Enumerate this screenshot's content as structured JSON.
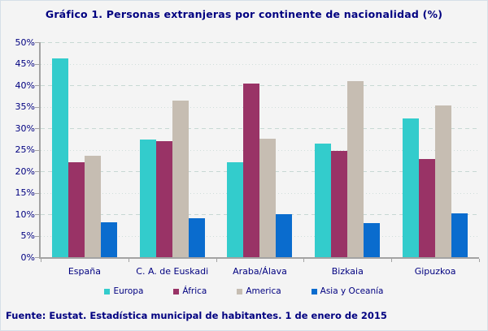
{
  "title": "Gráfico 1. Personas extranjeras por continente de nacionalidad (%)",
  "footer": "Fuente: Eustat. Estadística municipal de habitantes. 1 de enero de 2015",
  "colors": {
    "background": "#f4f4f4",
    "text": "#000080",
    "axis": "#a3a3a3",
    "gridline": "#c7d8d4",
    "border": "#d6dfe8"
  },
  "chart_data": {
    "type": "bar",
    "title": "Gráfico 1. Personas extranjeras por continente de nacionalidad (%)",
    "categories": [
      "España",
      "C. A. de Euskadi",
      "Araba/Álava",
      "Bizkaia",
      "Gipuzkoa"
    ],
    "series": [
      {
        "name": "Europa",
        "color": "#33cccc",
        "values": [
          46.3,
          27.4,
          22.1,
          26.4,
          32.2
        ]
      },
      {
        "name": "África",
        "color": "#993366",
        "values": [
          22.0,
          27.0,
          40.4,
          24.7,
          22.9
        ]
      },
      {
        "name": "America",
        "color": "#c6bdb2",
        "values": [
          23.5,
          36.4,
          27.5,
          41.0,
          35.2
        ]
      },
      {
        "name": "Asia y Oceanía",
        "color": "#0a6cce",
        "values": [
          8.1,
          9.1,
          10.0,
          7.9,
          10.1
        ]
      }
    ],
    "xlabel": "",
    "ylabel": "",
    "ylim": [
      0,
      50
    ],
    "ytick_step": 5,
    "ytick_format": "percent",
    "grid": "horizontal, dashed at 10% steps, dotted at 5% steps",
    "legend_position": "bottom",
    "source_note": "Fuente: Eustat. Estadística municipal de habitantes. 1 de enero de 2015"
  }
}
